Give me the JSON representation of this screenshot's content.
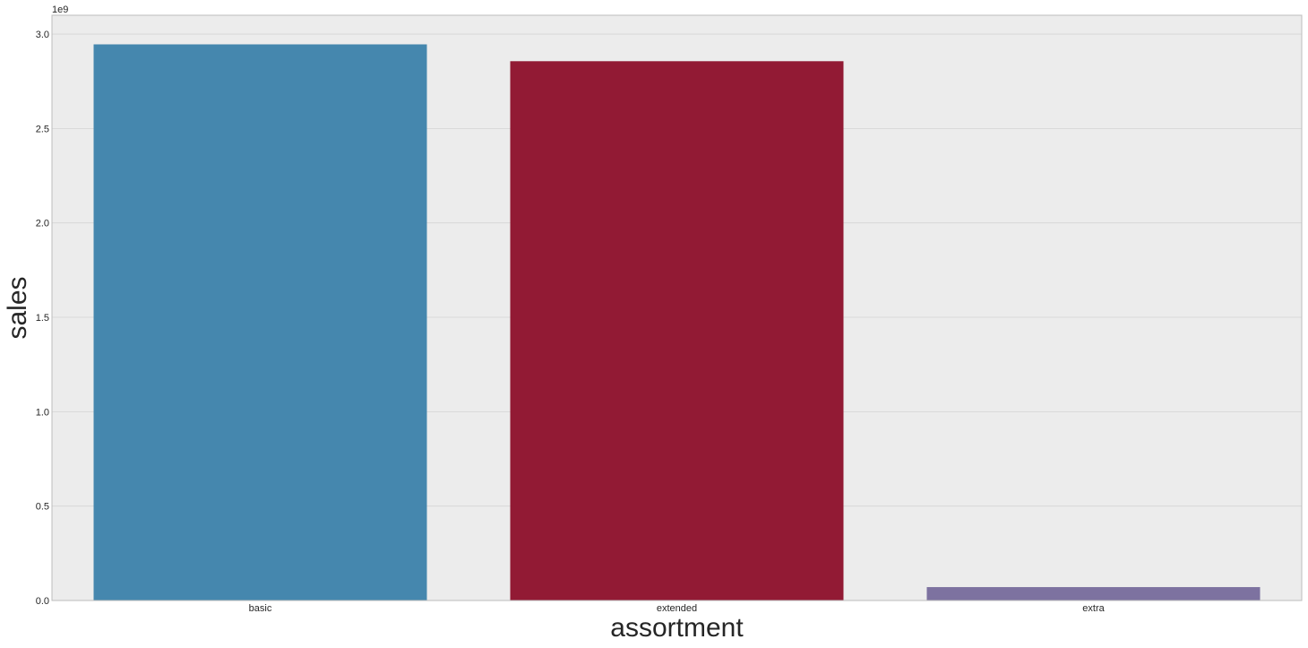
{
  "chart_data": {
    "type": "bar",
    "title": "",
    "xlabel": "assortment",
    "ylabel": "sales",
    "categories": [
      "basic",
      "extended",
      "extra"
    ],
    "values": [
      2945750070,
      2856484241,
      70946312
    ],
    "y_offset_text": "1e9",
    "y_scale": 1000000000,
    "ylim": [
      0,
      3.1
    ],
    "yticks": [
      0.0,
      0.5,
      1.0,
      1.5,
      2.0,
      2.5,
      3.0
    ],
    "ytick_labels": [
      "0.0",
      "0.5",
      "1.0",
      "1.5",
      "2.0",
      "2.5",
      "3.0"
    ],
    "grid": true,
    "legend": "none",
    "colors": [
      "#4587ae",
      "#921a34",
      "#7d72a0"
    ],
    "background_color": "#ececec",
    "grid_color": "#d4d4d4",
    "border_color": "#bcbcbc"
  }
}
